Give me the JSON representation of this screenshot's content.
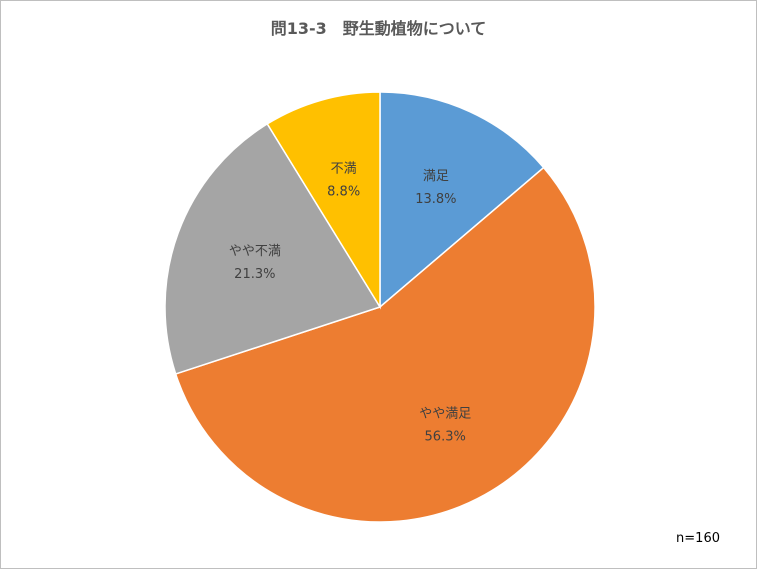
{
  "chart_data": {
    "type": "pie",
    "title": "問13-3　野生動植物について",
    "note": "n=160",
    "start_angle_deg": 0,
    "direction": "clockwise",
    "legend": "none",
    "slices": [
      {
        "label": "満足",
        "value": 13.8,
        "value_label": "13.8%",
        "color": "#5b9bd5"
      },
      {
        "label": "やや満足",
        "value": 56.3,
        "value_label": "56.3%",
        "color": "#ed7d31"
      },
      {
        "label": "やや不満",
        "value": 21.3,
        "value_label": "21.3%",
        "color": "#a5a5a5"
      },
      {
        "label": "不満",
        "value": 8.8,
        "value_label": "8.8%",
        "color": "#ffc000"
      }
    ]
  }
}
